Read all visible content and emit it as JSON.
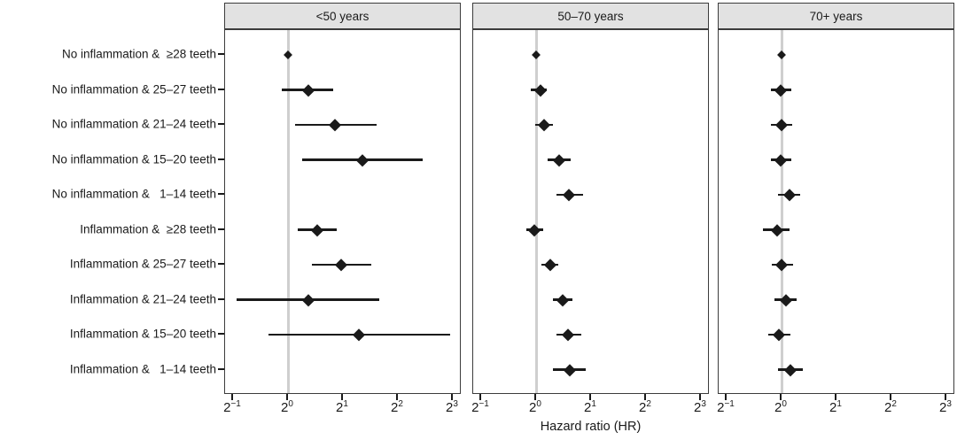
{
  "figure": {
    "xlabel": "Hazard ratio (HR)"
  },
  "chart_data": {
    "type": "forest-plot",
    "x_scale": "log2",
    "xlabel": "Hazard ratio (HR)",
    "reference_value": 1,
    "xlim": [
      0.44,
      8.7
    ],
    "grid": "off",
    "x_ticks": [
      {
        "base": "2",
        "exp": "−1",
        "value": 0.5
      },
      {
        "base": "2",
        "exp": "0",
        "value": 1
      },
      {
        "base": "2",
        "exp": "1",
        "value": 2
      },
      {
        "base": "2",
        "exp": "2",
        "value": 4
      },
      {
        "base": "2",
        "exp": "3",
        "value": 8
      }
    ],
    "categories": [
      "No inflammation &  ≥28 teeth",
      "No inflammation & 25–27 teeth",
      "No inflammation & 21–24 teeth",
      "No inflammation & 15–20 teeth",
      "No inflammation &   1–14 teeth",
      "Inflammation &  ≥28 teeth",
      "Inflammation & 25–27 teeth",
      "Inflammation & 21–24 teeth",
      "Inflammation & 15–20 teeth",
      "Inflammation &   1–14 teeth"
    ],
    "panels": [
      {
        "title": "<50 years",
        "points": [
          {
            "hr": 1.0,
            "lo": null,
            "hi": null,
            "reference": true
          },
          {
            "hr": 1.3,
            "lo": 0.92,
            "hi": 1.77
          },
          {
            "hr": 1.8,
            "lo": 1.09,
            "hi": 3.05
          },
          {
            "hr": 2.55,
            "lo": 1.2,
            "hi": 5.5
          },
          null,
          {
            "hr": 1.45,
            "lo": 1.13,
            "hi": 1.84
          },
          {
            "hr": 1.95,
            "lo": 1.35,
            "hi": 2.85
          },
          {
            "hr": 1.3,
            "lo": 0.52,
            "hi": 3.15
          },
          {
            "hr": 2.45,
            "lo": 0.78,
            "hi": 7.7
          },
          null
        ]
      },
      {
        "title": "50–70 years",
        "points": [
          {
            "hr": 1.0,
            "lo": null,
            "hi": null,
            "reference": true
          },
          {
            "hr": 1.06,
            "lo": 0.94,
            "hi": 1.15
          },
          {
            "hr": 1.11,
            "lo": 0.99,
            "hi": 1.24
          },
          {
            "hr": 1.33,
            "lo": 1.15,
            "hi": 1.54
          },
          {
            "hr": 1.52,
            "lo": 1.29,
            "hi": 1.8
          },
          {
            "hr": 0.98,
            "lo": 0.88,
            "hi": 1.09
          },
          {
            "hr": 1.19,
            "lo": 1.07,
            "hi": 1.32
          },
          {
            "hr": 1.4,
            "lo": 1.24,
            "hi": 1.58
          },
          {
            "hr": 1.5,
            "lo": 1.29,
            "hi": 1.76
          },
          {
            "hr": 1.53,
            "lo": 1.23,
            "hi": 1.88
          }
        ]
      },
      {
        "title": "70+ years",
        "points": [
          {
            "hr": 1.0,
            "lo": null,
            "hi": null,
            "reference": true
          },
          {
            "hr": 0.99,
            "lo": 0.87,
            "hi": 1.13
          },
          {
            "hr": 1.0,
            "lo": 0.87,
            "hi": 1.14
          },
          {
            "hr": 0.99,
            "lo": 0.87,
            "hi": 1.13
          },
          {
            "hr": 1.11,
            "lo": 0.96,
            "hi": 1.26
          },
          {
            "hr": 0.95,
            "lo": 0.79,
            "hi": 1.11
          },
          {
            "hr": 1.0,
            "lo": 0.88,
            "hi": 1.16
          },
          {
            "hr": 1.06,
            "lo": 0.91,
            "hi": 1.21
          },
          {
            "hr": 0.97,
            "lo": 0.85,
            "hi": 1.12
          },
          {
            "hr": 1.12,
            "lo": 0.96,
            "hi": 1.31
          }
        ]
      }
    ],
    "colors": {
      "marker": "#1a1a1a",
      "ci_line": "#1a1a1a",
      "reference_line": "#cfcfcf",
      "panel_border": "#3c3c3c",
      "header_bg": "#e2e2e2",
      "text": "#1a1a1a",
      "background": "#ffffff"
    }
  }
}
